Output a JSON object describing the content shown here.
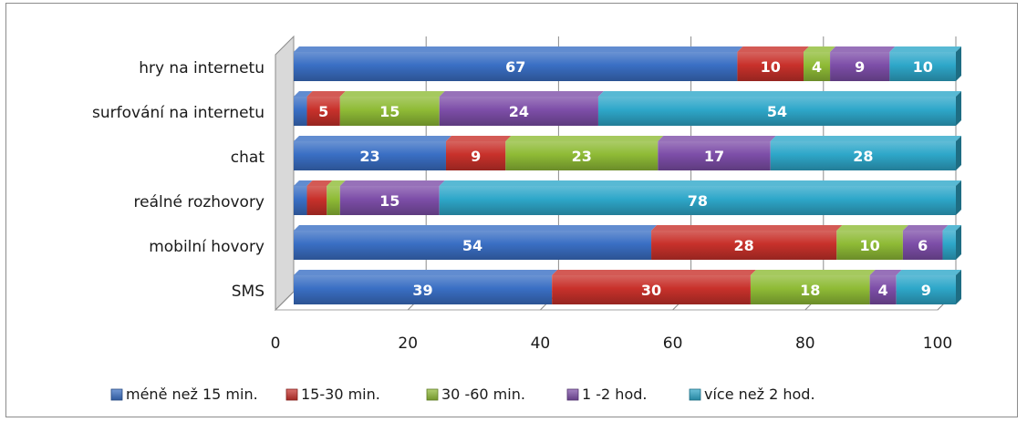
{
  "chart_data": {
    "type": "bar",
    "orientation": "horizontal",
    "stacked": true,
    "percent_stacked": true,
    "three_d": true,
    "categories": [
      "hry na internetu",
      "surfování na internetu",
      "chat",
      "reálné rozhovory",
      "mobilní hovory",
      "SMS"
    ],
    "series": [
      {
        "name": "méně než 15 min.",
        "color": "#3a6fc4",
        "values": [
          67,
          2,
          23,
          2,
          54,
          39
        ],
        "labels": [
          "67",
          "",
          "23",
          "",
          "54",
          "39"
        ]
      },
      {
        "name": "15-30 min.",
        "color": "#c8312b",
        "values": [
          10,
          5,
          9,
          3,
          28,
          30
        ],
        "labels": [
          "10",
          "5",
          "9",
          "",
          "28",
          "30"
        ]
      },
      {
        "name": "30 -60 min.",
        "color": "#8fbb36",
        "values": [
          4,
          15,
          23,
          2,
          10,
          18
        ],
        "labels": [
          "4",
          "15",
          "23",
          "",
          "10",
          "18"
        ]
      },
      {
        "name": "1 -2 hod.",
        "color": "#7d4ea8",
        "values": [
          9,
          24,
          17,
          15,
          6,
          4
        ],
        "labels": [
          "9",
          "24",
          "17",
          "15",
          "6",
          "4"
        ]
      },
      {
        "name": "více než 2 hod.",
        "color": "#2ea7c9",
        "values": [
          10,
          54,
          28,
          78,
          2,
          9
        ],
        "labels": [
          "10",
          "54",
          "28",
          "78",
          "",
          "9"
        ]
      }
    ],
    "xlim": [
      0,
      100
    ],
    "xticks": [
      "0",
      "20",
      "40",
      "60",
      "80",
      "100"
    ],
    "grid": true,
    "legend_position": "bottom"
  }
}
